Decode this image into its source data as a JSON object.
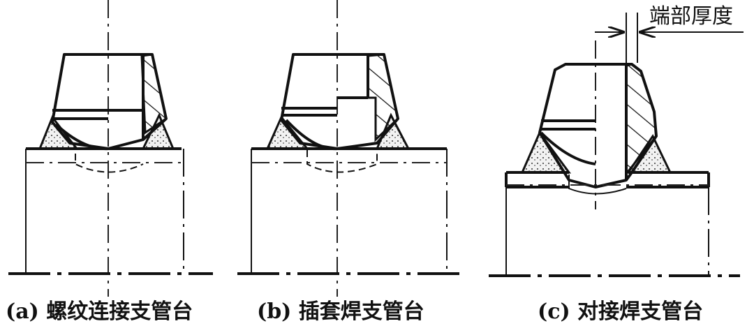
{
  "panels": [
    {
      "id": "a",
      "caption": "(a) 螺纹连接支管台"
    },
    {
      "id": "b",
      "caption": "(b) 插套焊支管台"
    },
    {
      "id": "c",
      "caption": "(c) 对接焊支管台",
      "dimension_label": "端部厚度"
    }
  ]
}
